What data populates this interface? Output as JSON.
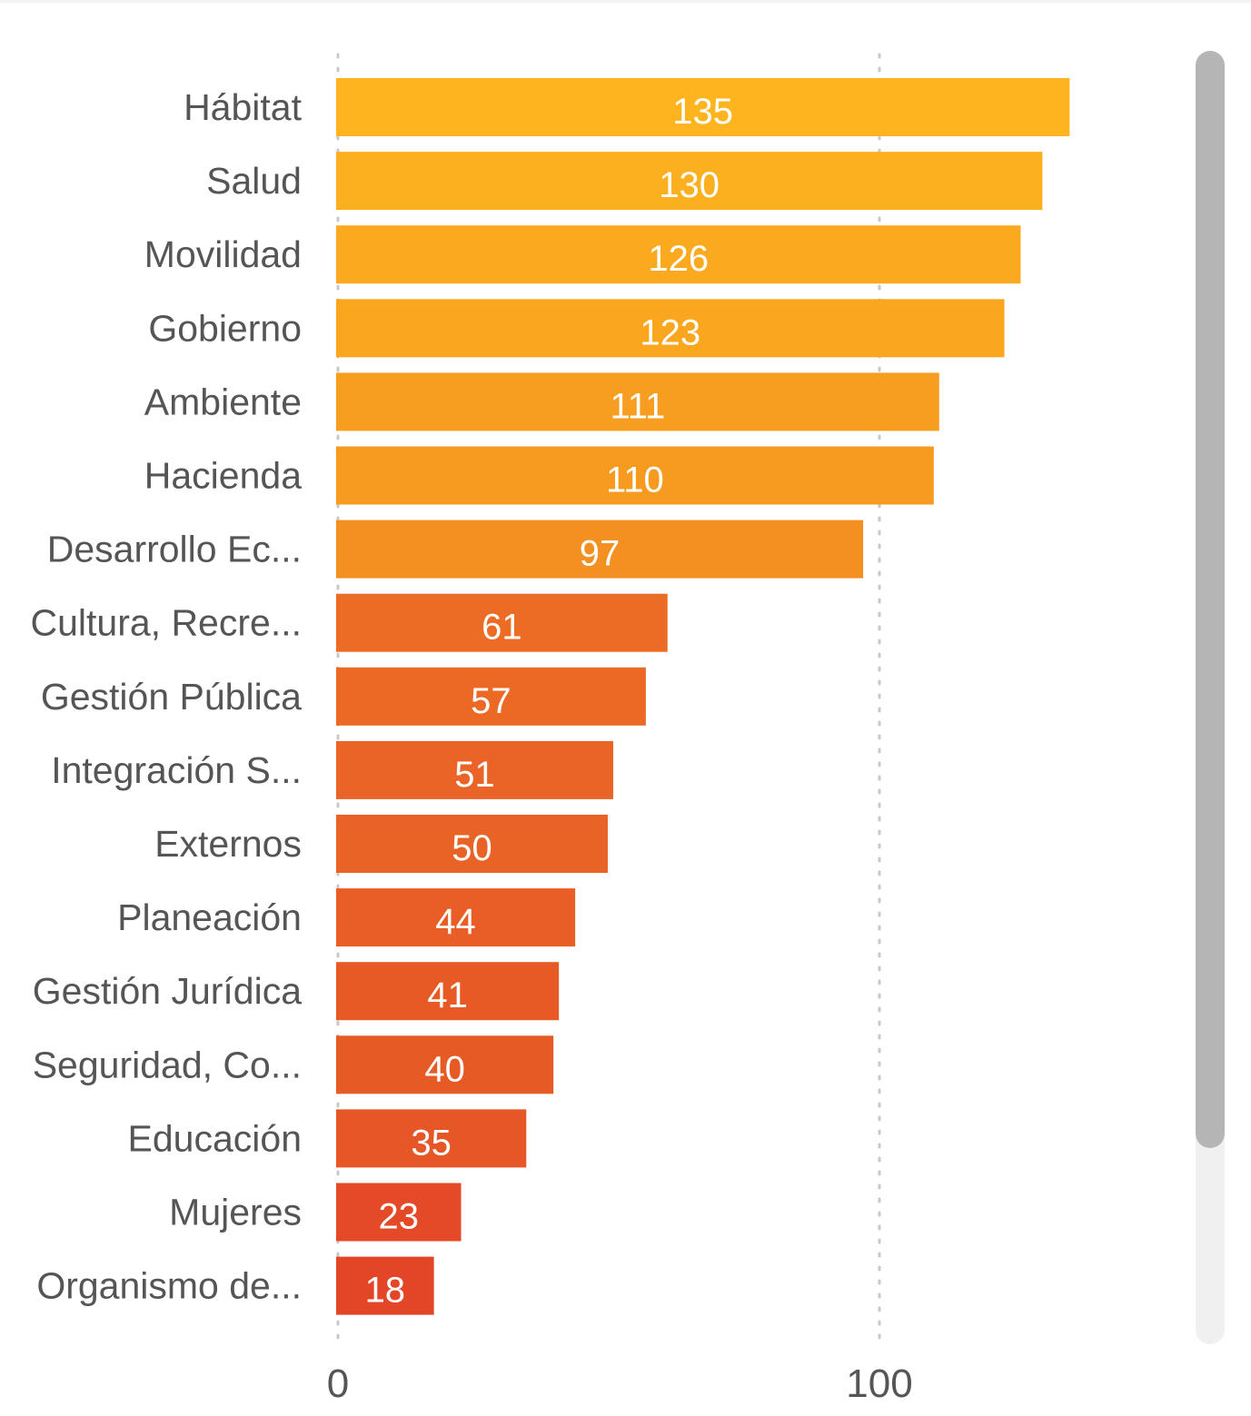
{
  "chart_data": {
    "type": "bar",
    "orientation": "horizontal",
    "categories": [
      "Hábitat",
      "Salud",
      "Movilidad",
      "Gobierno",
      "Ambiente",
      "Hacienda",
      "Desarrollo Ec...",
      "Cultura, Recre...",
      "Gestión Pública",
      "Integración S...",
      "Externos",
      "Planeación",
      "Gestión Jurídica",
      "Seguridad, Co...",
      "Educación",
      "Mujeres",
      "Organismo de..."
    ],
    "values": [
      135,
      130,
      126,
      123,
      111,
      110,
      97,
      61,
      57,
      51,
      50,
      44,
      41,
      40,
      35,
      23,
      18
    ],
    "colors": [
      "#fdb41f",
      "#fcb01f",
      "#fbaa1f",
      "#faa71f",
      "#f79d20",
      "#f69b20",
      "#f49021",
      "#ec6b25",
      "#eb6825",
      "#e96426",
      "#e96326",
      "#e85e26",
      "#e75a26",
      "#e65a26",
      "#e65626",
      "#e44a27",
      "#e34527"
    ],
    "xlim": [
      0,
      135
    ],
    "xticks": [
      "0",
      "100"
    ],
    "grid": true,
    "data_labels": true
  }
}
